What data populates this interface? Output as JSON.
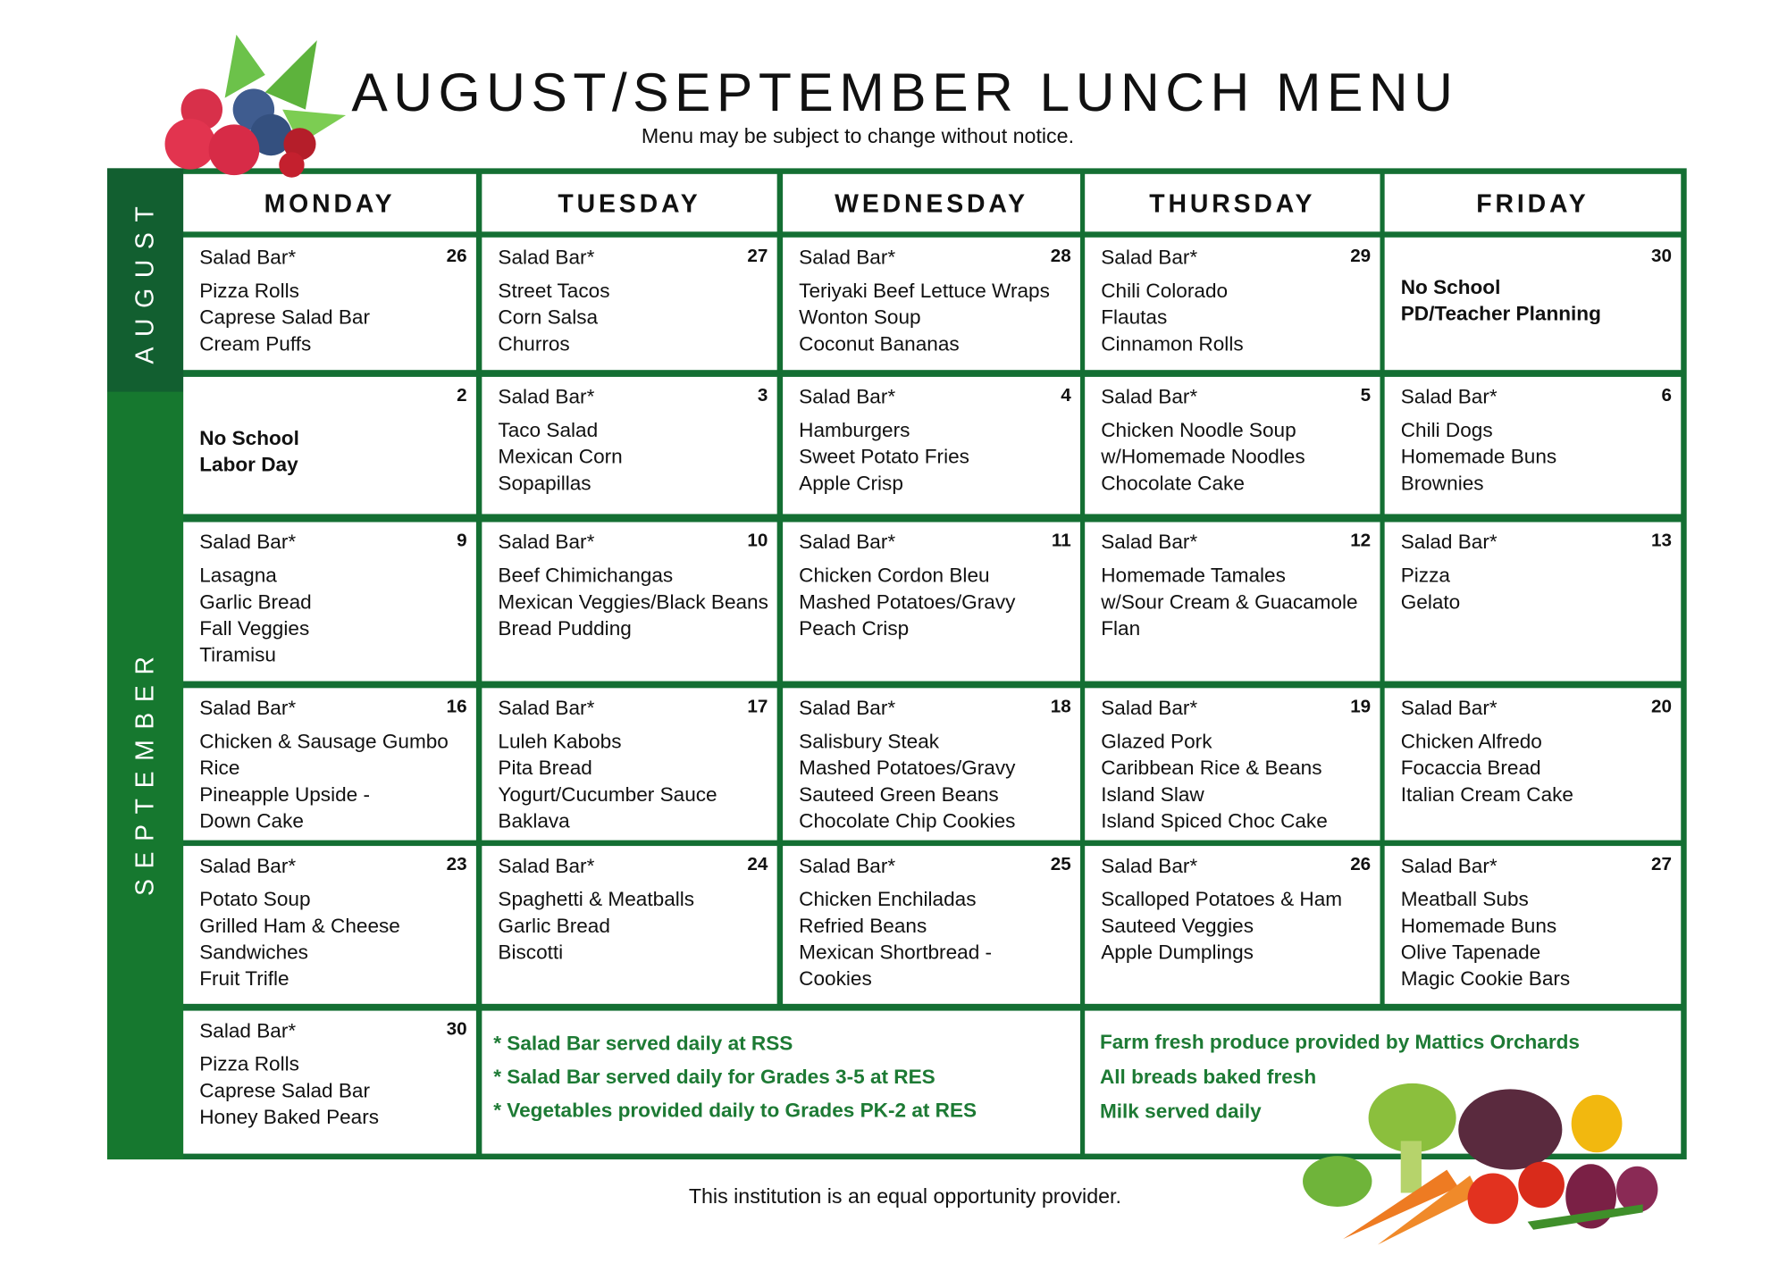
{
  "header": {
    "title": "AUGUST/SEPTEMBER LUNCH MENU",
    "subtitle": "Menu may be subject to change without notice."
  },
  "footer": "This institution is an equal opportunity provider.",
  "months": [
    "AUGUST",
    "SEPTEMBER"
  ],
  "days": [
    "MONDAY",
    "TUESDAY",
    "WEDNESDAY",
    "THURSDAY",
    "FRIDAY"
  ],
  "colors": {
    "frame": "#146f33",
    "august_band": "#125f30",
    "september_band": "#16782f",
    "note_text": "#1d7a34"
  },
  "weeks": [
    [
      {
        "date": "26",
        "lines": [
          "Salad Bar*",
          "Pizza Rolls",
          "Caprese Salad Bar",
          "Cream Puffs"
        ]
      },
      {
        "date": "27",
        "lines": [
          "Salad Bar*",
          "Street Tacos",
          "Corn Salsa",
          "Churros"
        ]
      },
      {
        "date": "28",
        "lines": [
          "Salad Bar*",
          "Teriyaki Beef Lettuce Wraps",
          "Wonton Soup",
          "Coconut Bananas"
        ]
      },
      {
        "date": "29",
        "lines": [
          "Salad Bar*",
          "Chili Colorado",
          "Flautas",
          "Cinnamon Rolls"
        ]
      },
      {
        "date": "30",
        "closed": true,
        "lines": [
          "No School",
          "PD/Teacher Planning"
        ]
      }
    ],
    [
      {
        "date": "2",
        "closed": true,
        "lines": [
          "No School",
          "Labor Day"
        ]
      },
      {
        "date": "3",
        "lines": [
          "Salad Bar*",
          "Taco Salad",
          "Mexican Corn",
          "Sopapillas"
        ]
      },
      {
        "date": "4",
        "lines": [
          "Salad Bar*",
          "Hamburgers",
          "Sweet Potato Fries",
          "Apple Crisp"
        ]
      },
      {
        "date": "5",
        "lines": [
          "Salad Bar*",
          "Chicken Noodle Soup",
          "w/Homemade Noodles",
          "Chocolate Cake"
        ]
      },
      {
        "date": "6",
        "lines": [
          "Salad Bar*",
          "Chili Dogs",
          "Homemade Buns",
          "Brownies"
        ]
      }
    ],
    [
      {
        "date": "9",
        "lines": [
          "Salad Bar*",
          "Lasagna",
          "Garlic Bread",
          "Fall Veggies",
          "Tiramisu"
        ]
      },
      {
        "date": "10",
        "lines": [
          "Salad Bar*",
          "Beef Chimichangas",
          "Mexican Veggies/Black Beans",
          "Bread Pudding"
        ]
      },
      {
        "date": "11",
        "lines": [
          "Salad Bar*",
          "Chicken Cordon Bleu",
          "Mashed Potatoes/Gravy",
          "Peach Crisp"
        ]
      },
      {
        "date": "12",
        "lines": [
          "Salad Bar*",
          "Homemade Tamales",
          "w/Sour Cream & Guacamole",
          "Flan"
        ]
      },
      {
        "date": "13",
        "lines": [
          "Salad Bar*",
          "Pizza",
          "Gelato"
        ]
      }
    ],
    [
      {
        "date": "16",
        "lines": [
          "Salad Bar*",
          "Chicken & Sausage Gumbo",
          "Rice",
          "Pineapple Upside -",
          "Down Cake"
        ]
      },
      {
        "date": "17",
        "lines": [
          "Salad Bar*",
          "Luleh Kabobs",
          "Pita Bread",
          "Yogurt/Cucumber Sauce",
          "Baklava"
        ]
      },
      {
        "date": "18",
        "lines": [
          "Salad Bar*",
          "Salisbury Steak",
          "Mashed Potatoes/Gravy",
          "Sauteed Green Beans",
          "Chocolate Chip Cookies"
        ]
      },
      {
        "date": "19",
        "lines": [
          "Salad Bar*",
          "Glazed Pork",
          "Caribbean Rice & Beans",
          "Island Slaw",
          "Island Spiced Choc Cake"
        ]
      },
      {
        "date": "20",
        "lines": [
          "Salad Bar*",
          "Chicken Alfredo",
          "Focaccia Bread",
          "Italian Cream Cake"
        ]
      }
    ],
    [
      {
        "date": "23",
        "lines": [
          "Salad Bar*",
          "Potato Soup",
          "Grilled Ham & Cheese",
          "Sandwiches",
          "Fruit Trifle"
        ]
      },
      {
        "date": "24",
        "lines": [
          "Salad Bar*",
          "Spaghetti & Meatballs",
          "Garlic Bread",
          "Biscotti"
        ]
      },
      {
        "date": "25",
        "lines": [
          "Salad Bar*",
          "Chicken Enchiladas",
          "Refried Beans",
          "Mexican Shortbread -",
          "Cookies"
        ]
      },
      {
        "date": "26",
        "lines": [
          "Salad Bar*",
          "Scalloped Potatoes & Ham",
          "Sauteed Veggies",
          "Apple Dumplings"
        ]
      },
      {
        "date": "27",
        "lines": [
          "Salad Bar*",
          "Meatball Subs",
          "Homemade Buns",
          "Olive Tapenade",
          "Magic Cookie Bars"
        ]
      }
    ],
    [
      {
        "date": "30",
        "lines": [
          "Salad Bar*",
          "Pizza Rolls",
          "Caprese Salad Bar",
          "Honey Baked Pears"
        ]
      }
    ]
  ],
  "notes_left": [
    "* Salad Bar served daily at RSS",
    "* Salad Bar served daily for Grades 3-5 at RES",
    "* Vegetables provided daily to Grades PK-2 at RES"
  ],
  "notes_right": [
    "Farm fresh produce provided by Mattics Orchards",
    "All breads baked fresh",
    "Milk served daily"
  ]
}
